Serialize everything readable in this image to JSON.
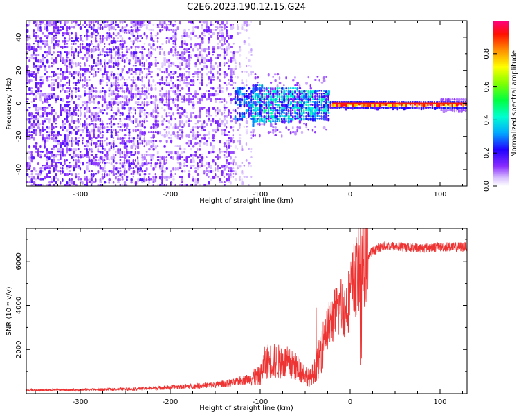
{
  "title": "C2E6.2023.190.12.15.G24",
  "chart_data": [
    {
      "type": "heatmap",
      "xlabel": "Height of straight line (km)",
      "ylabel": "Frequency (Hz)",
      "xlim": [
        -360,
        130
      ],
      "ylim": [
        -50,
        50
      ],
      "xticks": [
        -300,
        -200,
        -100,
        0,
        100
      ],
      "yticks": [
        -40,
        -20,
        0,
        20,
        40
      ],
      "xtick_labels": [
        "-300",
        "-200",
        "-100",
        "0",
        "100"
      ],
      "ytick_labels": [
        "-40",
        "-20",
        "0",
        "20",
        "40"
      ],
      "colorbar": {
        "label": "Normalized spectral amplitude",
        "range": [
          0,
          1
        ],
        "ticks": [
          0.0,
          0.2,
          0.4,
          0.6,
          0.8
        ],
        "tick_labels": [
          "0.0",
          "0.2",
          "0.4",
          "0.6",
          "0.8"
        ],
        "colormap": [
          "#ffffff",
          "#b98cff",
          "#6a00ff",
          "#0000ff",
          "#00c8ff",
          "#00ff80",
          "#80ff00",
          "#ffff00",
          "#ff8000",
          "#ff0000",
          "#ff0080"
        ]
      },
      "regions": [
        {
          "x": [
            -360,
            -110
          ],
          "freq": [
            -50,
            50
          ],
          "amplitude": [
            0.02,
            0.12
          ],
          "description_level": "noise"
        },
        {
          "x": [
            -125,
            -25
          ],
          "freq": [
            -10,
            10
          ],
          "amplitude": [
            0.1,
            0.5
          ],
          "description_level": "transition"
        },
        {
          "x": [
            -25,
            130
          ],
          "freq": [
            -1.5,
            1.5
          ],
          "amplitude": [
            0.6,
            1.0
          ],
          "description_level": "carrier"
        }
      ]
    },
    {
      "type": "line",
      "xlabel": "Height of straight line (km)",
      "ylabel": "SNR (10 * v/v)",
      "xlim": [
        -360,
        130
      ],
      "ylim": [
        0,
        7500
      ],
      "xticks": [
        -300,
        -200,
        -100,
        0,
        100
      ],
      "yticks": [
        2000,
        4000,
        6000
      ],
      "xtick_labels": [
        "-300",
        "-200",
        "-100",
        "0",
        "100"
      ],
      "ytick_labels": [
        "2000",
        "4000",
        "6000"
      ],
      "series": [
        {
          "color": "#ee3333",
          "x": [
            -360,
            -330,
            -300,
            -270,
            -240,
            -210,
            -200,
            -180,
            -150,
            -130,
            -115,
            -100,
            -95,
            -90,
            -80,
            -70,
            -60,
            -50,
            -45,
            -40,
            -35,
            -30,
            -25,
            -20,
            -15,
            -10,
            -5,
            0,
            5,
            10,
            15,
            20,
            30,
            40,
            60,
            80,
            100,
            130
          ],
          "y": [
            150,
            160,
            170,
            190,
            210,
            260,
            280,
            330,
            400,
            500,
            650,
            800,
            1400,
            1500,
            1450,
            1400,
            1200,
            900,
            700,
            1000,
            1500,
            2500,
            3000,
            3400,
            3700,
            4000,
            3800,
            4500,
            5200,
            5600,
            5900,
            6300,
            6600,
            6700,
            6650,
            6600,
            6650,
            6650
          ]
        }
      ]
    }
  ]
}
